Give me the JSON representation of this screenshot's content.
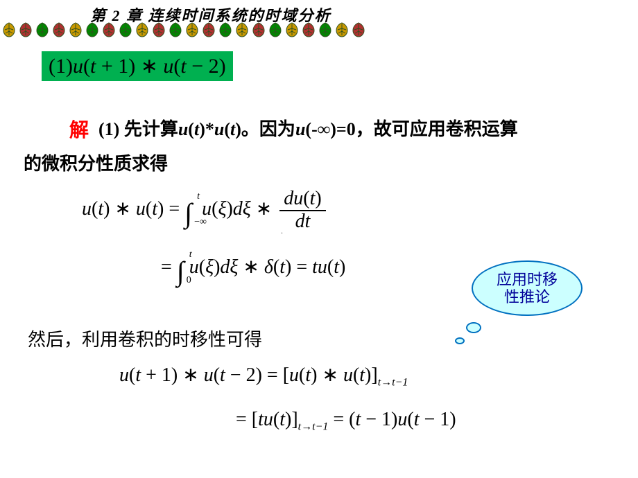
{
  "header": {
    "chapter_title": "第 2 章  连续时间系统的时域分析",
    "leaf_colors": [
      "#c89800",
      "#b03030",
      "#008800",
      "#b03030",
      "#c89800",
      "#008800",
      "#b03030",
      "#008800",
      "#c89800",
      "#b03030",
      "#008800",
      "#c89800",
      "#b03030",
      "#008800",
      "#c89800",
      "#b03030",
      "#008800",
      "#c89800",
      "#b03030",
      "#008800",
      "#c89800",
      "#b03030"
    ],
    "leaf_stroke": "#305020"
  },
  "problem": {
    "box_bg": "#00b050",
    "expr_prefix": "(1)",
    "expr": "u(t + 1) ∗ u(t − 2)"
  },
  "solution": {
    "label": "解",
    "label_color": "#ff0000",
    "line1_prefix": "(1) 先计算",
    "line1_math": "u(t)*u(t)",
    "line1_mid": "。因为",
    "line1_math2": "u(-∞)=0",
    "line1_suffix": "，故可应用卷积运算",
    "line2": "的微积分性质求得"
  },
  "equation1": {
    "lhs": "u(t) ∗ u(t)",
    "eq": " = ",
    "int_lo": "−∞",
    "int_up": "t",
    "integrand": "u(ξ)dξ ∗ ",
    "frac_num": "du(t)",
    "frac_den": "dt"
  },
  "page_marker": ".",
  "equation2": {
    "eq": "= ",
    "int_lo": "0",
    "int_up": "t",
    "body": "u(ξ)dξ ∗ δ(t) = tu(t)"
  },
  "cloud": {
    "text_l1": "应用时移",
    "text_l2": "性推论",
    "bg": "#ccffff",
    "border": "#0070c0",
    "text_color": "#000099"
  },
  "then_text": "然后，利用卷积的时移性可得",
  "equation3": {
    "lhs": "u(t + 1) ∗ u(t − 2) = [u(t) ∗ u(t)]",
    "sub": "t→t−1"
  },
  "equation4": {
    "part1": "= [tu(t)]",
    "sub": "t→t−1",
    "part2": " = (t − 1)u(t − 1)"
  },
  "style": {
    "body_font_serif": "Times New Roman",
    "body_font_cjk": "SimSun",
    "math_fontsize": 28,
    "text_fontsize": 26
  }
}
